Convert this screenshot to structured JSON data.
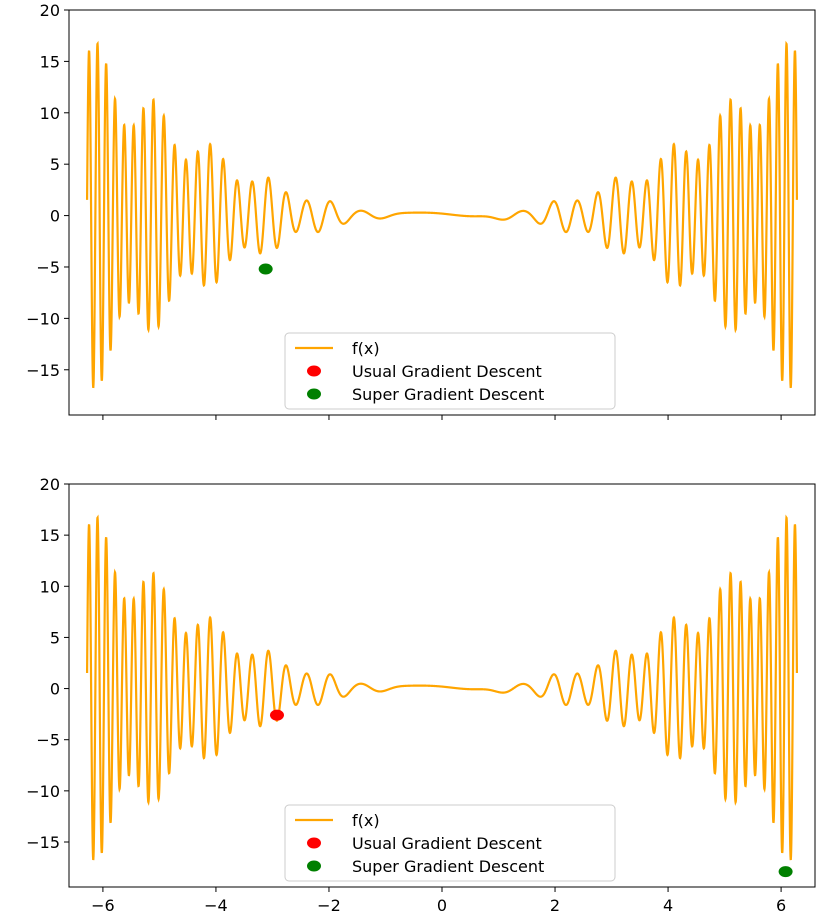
{
  "chart_data": [
    {
      "type": "line",
      "title": "",
      "xlabel": "",
      "ylabel": "",
      "xlim": [
        -6.6,
        6.6
      ],
      "ylim": [
        -19.4,
        20
      ],
      "x_ticks": [],
      "y_ticks": [
        20,
        15,
        10,
        5,
        0,
        -5,
        -10,
        -15
      ],
      "grid": false,
      "legend_position": "lower center",
      "series": [
        {
          "name": "f(x)",
          "kind": "line",
          "color": "#FFA500",
          "x_range": [
            -6.28,
            6.28
          ]
        },
        {
          "name": "Usual Gradient Descent",
          "kind": "point",
          "color": "#FF0000",
          "x": null,
          "y": null
        },
        {
          "name": "Super Gradient Descent",
          "kind": "point",
          "color": "#008000",
          "x": -3.12,
          "y": -5.2
        }
      ]
    },
    {
      "type": "line",
      "title": "",
      "xlabel": "",
      "ylabel": "",
      "xlim": [
        -6.6,
        6.6
      ],
      "ylim": [
        -19.4,
        20
      ],
      "x_ticks": [
        -6,
        -4,
        -2,
        0,
        2,
        4,
        6
      ],
      "y_ticks": [
        20,
        15,
        10,
        5,
        0,
        -5,
        -10,
        -15
      ],
      "grid": false,
      "legend_position": "lower center",
      "series": [
        {
          "name": "f(x)",
          "kind": "line",
          "color": "#FFA500",
          "x_range": [
            -6.28,
            6.28
          ]
        },
        {
          "name": "Usual Gradient Descent",
          "kind": "point",
          "color": "#FF0000",
          "x": -2.92,
          "y": -2.6
        },
        {
          "name": "Super Gradient Descent",
          "kind": "point",
          "color": "#008000",
          "x": 6.08,
          "y": -17.9
        }
      ]
    }
  ]
}
